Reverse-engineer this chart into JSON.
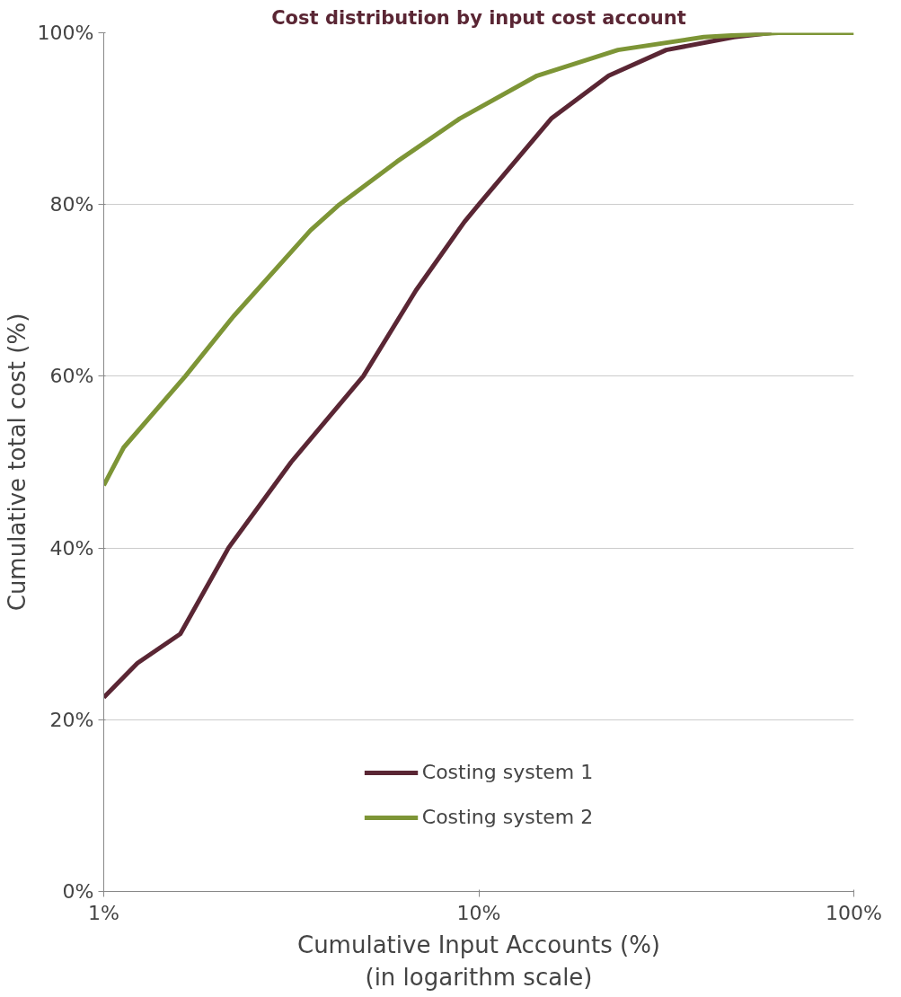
{
  "chart_data": {
    "type": "line",
    "title": "Cost distribution by input cost account",
    "xlabel": "Cumulative Input Accounts (%)\n(in logarithm scale)",
    "ylabel": "Cumulative total cost (%)",
    "log": "x",
    "xlim": [
      1,
      100
    ],
    "xticks": [
      {
        "value": 1,
        "label": "1%"
      },
      {
        "value": 10,
        "label": "10%"
      },
      {
        "value": 100,
        "label": "100%"
      }
    ],
    "ylim": [
      0,
      100
    ],
    "yticks": [
      {
        "value": 0,
        "label": "0%"
      },
      {
        "value": 20,
        "label": "20%"
      },
      {
        "value": 40,
        "label": "40%"
      },
      {
        "value": 60,
        "label": "60%"
      },
      {
        "value": 80,
        "label": "80%"
      },
      {
        "value": 100,
        "label": "100%"
      }
    ],
    "grid": "y",
    "legend": "bottom",
    "line_style": "solid",
    "marker": "none",
    "series": [
      {
        "name": "Costing system 1",
        "color": "#5a2634",
        "x": [
          1,
          1.23,
          1.6,
          2.15,
          3.16,
          4.92,
          6.8,
          9.16,
          10,
          15.6,
          22.2,
          31.6,
          47.9,
          60.3
        ],
        "values": [
          22.6,
          26.6,
          30,
          40,
          50,
          60,
          70,
          78,
          80,
          90,
          95,
          98,
          99.5,
          100
        ]
      },
      {
        "name": "Costing system 2",
        "color": "#7d9536",
        "x": [
          1,
          1.13,
          1.65,
          2.22,
          3.56,
          4.25,
          6.05,
          8.89,
          14.3,
          23.5,
          39.8,
          63,
          100
        ],
        "values": [
          47.3,
          51.7,
          60,
          67,
          77,
          80,
          85,
          90,
          95,
          98,
          99.5,
          100,
          100
        ]
      }
    ]
  }
}
